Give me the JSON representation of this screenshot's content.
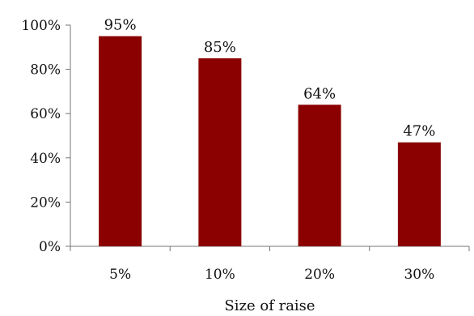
{
  "chart_data": {
    "type": "bar",
    "categories": [
      "5%",
      "10%",
      "20%",
      "30%"
    ],
    "values": [
      95,
      85,
      64,
      47
    ],
    "data_labels": [
      "95%",
      "85%",
      "64%",
      "47%"
    ],
    "xlabel": "Size of raise",
    "ylabel": "",
    "ylim": [
      0,
      100
    ],
    "yticks": [
      0,
      20,
      40,
      60,
      80,
      100
    ],
    "ytick_labels": [
      "0%",
      "20%",
      "40%",
      "60%",
      "80%",
      "100%"
    ],
    "grid": false,
    "legend": "none",
    "colors": {
      "bar": "#8b0000"
    }
  }
}
